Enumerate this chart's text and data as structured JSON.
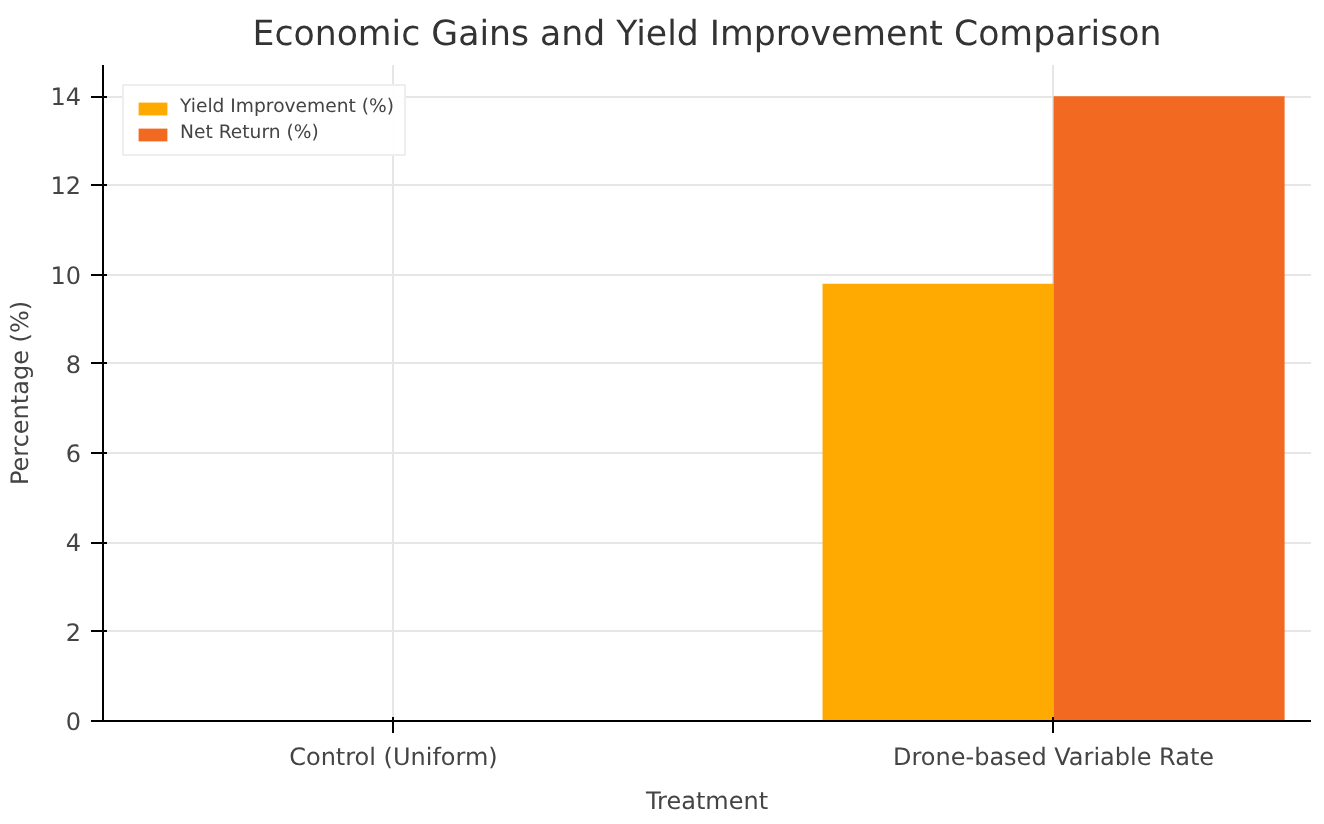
{
  "chart_data": {
    "type": "bar",
    "title": "Economic Gains and Yield Improvement Comparison",
    "xlabel": "Treatment",
    "ylabel": "Percentage (%)",
    "categories": [
      "Control (Uniform)",
      "Drone-based Variable Rate"
    ],
    "series": [
      {
        "name": "Yield Improvement (%)",
        "color": "#ffaa00",
        "values": [
          0,
          9.8
        ]
      },
      {
        "name": "Net Return (%)",
        "color": "#f26a21",
        "values": [
          0,
          14
        ]
      }
    ],
    "ylim": [
      0,
      14.7
    ],
    "yticks": [
      0,
      2,
      4,
      6,
      8,
      10,
      12,
      14
    ],
    "grid": true,
    "legend": "top left"
  }
}
